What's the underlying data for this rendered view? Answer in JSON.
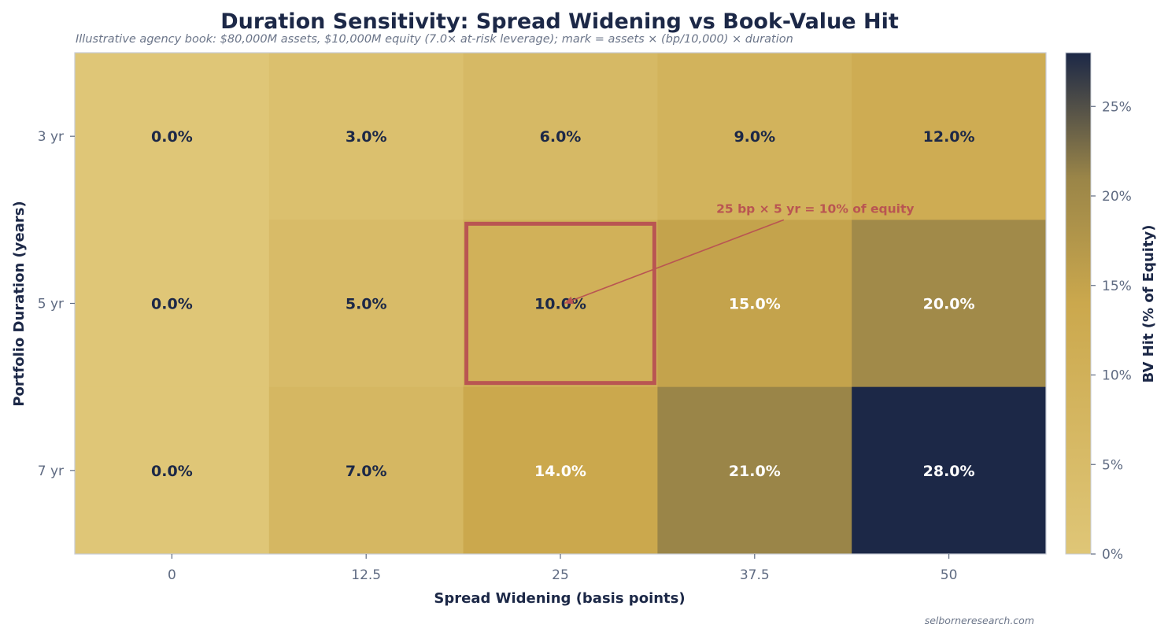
{
  "chart_data": {
    "type": "heatmap",
    "title": "Duration Sensitivity: Spread Widening vs Book-Value Hit",
    "subtitle": "Illustrative agency book: $80,000M assets, $10,000M equity (7.0× at-risk leverage); mark = assets × (bp/10,000) × duration",
    "xlabel": "Spread Widening (basis points)",
    "ylabel": "Portfolio Duration (years)",
    "x_categories": [
      "0",
      "12.5",
      "25",
      "37.5",
      "50"
    ],
    "y_categories": [
      "3 yr",
      "5 yr",
      "7 yr"
    ],
    "values": [
      [
        0.0,
        3.0,
        6.0,
        9.0,
        12.0
      ],
      [
        0.0,
        5.0,
        10.0,
        15.0,
        20.0
      ],
      [
        0.0,
        7.0,
        14.0,
        21.0,
        28.0
      ]
    ],
    "cell_labels": [
      [
        "0.0%",
        "3.0%",
        "6.0%",
        "9.0%",
        "12.0%"
      ],
      [
        "0.0%",
        "5.0%",
        "10.0%",
        "15.0%",
        "20.0%"
      ],
      [
        "0.0%",
        "7.0%",
        "14.0%",
        "21.0%",
        "28.0%"
      ]
    ],
    "colorbar": {
      "label": "BV Hit (% of Equity)",
      "range": [
        0,
        28
      ],
      "ticks": [
        0,
        5,
        10,
        15,
        20,
        25
      ],
      "tick_labels": [
        "0%",
        "5%",
        "10%",
        "15%",
        "20%",
        "25%"
      ],
      "colors": [
        "#dfc677",
        "#cba84d",
        "#9a8548",
        "#1c2847"
      ],
      "color_stops": [
        0,
        0.5,
        0.75,
        1
      ]
    },
    "highlight": {
      "row": 1,
      "col": 2,
      "color": "#b95552"
    },
    "annotation": {
      "text": "25 bp × 5 yr = 10% of equity",
      "target_row": 1,
      "target_col": 2
    },
    "credit": "selborneresearch.com",
    "grid": false
  }
}
